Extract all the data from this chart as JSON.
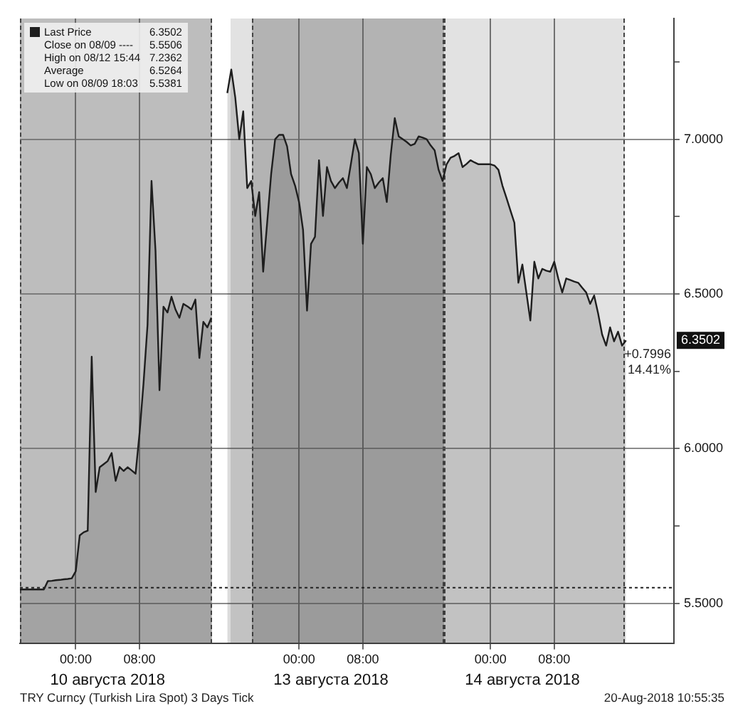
{
  "chart_data": {
    "type": "area",
    "categories": [
      null,
      null,
      null,
      null,
      null,
      null,
      null,
      null,
      null,
      null,
      null,
      null,
      null,
      null,
      "00:00",
      null,
      null,
      null,
      null,
      null,
      null,
      null,
      null,
      null,
      null,
      null,
      null,
      null,
      null,
      null,
      "08:00",
      null,
      null,
      null,
      null,
      null,
      null,
      null,
      null,
      null,
      null,
      null,
      null,
      null,
      null,
      null,
      null,
      null,
      null,
      null,
      null,
      null,
      null,
      null,
      null,
      null,
      null,
      null,
      null,
      null,
      null,
      null,
      null,
      null,
      null,
      null,
      null,
      null,
      null,
      null,
      "00:00",
      null,
      null,
      null,
      null,
      null,
      null,
      null,
      null,
      null,
      null,
      null,
      null,
      null,
      null,
      null,
      "08:00",
      null,
      null,
      null,
      null,
      null,
      null,
      null,
      null,
      null,
      null,
      null,
      null,
      null,
      null,
      null,
      null,
      null,
      null,
      null,
      null,
      null,
      null,
      null,
      null,
      null,
      null,
      null,
      null,
      null,
      null,
      null,
      "00:00",
      null,
      null,
      null,
      null,
      null,
      null,
      null,
      null,
      null,
      null,
      null,
      null,
      null,
      null,
      null,
      "08:00",
      null,
      null,
      null,
      null,
      null,
      null,
      null,
      null,
      null,
      null,
      null,
      null,
      null,
      null,
      null,
      null,
      null,
      null,
      null,
      null,
      null,
      null,
      null,
      null,
      null,
      null,
      null,
      null,
      null,
      null
    ],
    "ylim": [
      5.37,
      7.39
    ],
    "yticks": [
      {
        "value": 5.5,
        "label": "5.5000"
      },
      {
        "value": 5.75,
        "label": null
      },
      {
        "value": 6,
        "label": "6.0000"
      },
      {
        "value": 6.25,
        "label": null
      },
      {
        "value": 6.5,
        "label": "6.5000"
      },
      {
        "value": 6.75,
        "label": null
      },
      {
        "value": 7,
        "label": "7.0000"
      },
      {
        "value": 7.25,
        "label": null
      }
    ],
    "grid": true,
    "legend": "top left",
    "series": [
      {
        "name": "Last Price",
        "color": "#1e1e1e",
        "values": [
          5.545,
          5.545,
          5.545,
          5.545,
          5.545,
          5.545,
          5.545,
          5.572,
          5.573,
          5.575,
          5.576,
          5.578,
          5.579,
          5.581,
          5.604,
          5.72,
          5.73,
          5.735,
          6.297,
          5.86,
          5.94,
          5.95,
          5.96,
          5.986,
          5.896,
          5.941,
          5.928,
          5.94,
          5.93,
          5.919,
          6.05,
          6.212,
          6.4,
          6.865,
          6.64,
          6.189,
          6.459,
          6.44,
          6.491,
          6.45,
          6.423,
          6.468,
          6.46,
          6.45,
          6.482,
          6.293,
          6.41,
          6.392,
          6.423,
          null,
          null,
          null,
          7.149,
          7.225,
          7.135,
          7.0,
          7.09,
          6.842,
          6.865,
          6.752,
          6.829,
          6.572,
          6.73,
          6.887,
          7.0,
          7.014,
          7.014,
          6.977,
          6.887,
          6.85,
          6.797,
          6.707,
          6.446,
          6.662,
          6.685,
          6.932,
          6.752,
          6.91,
          6.865,
          6.842,
          6.86,
          6.874,
          6.842,
          6.92,
          7.0,
          6.955,
          6.662,
          6.91,
          6.887,
          6.842,
          6.86,
          6.874,
          6.797,
          6.95,
          7.068,
          7.009,
          7.0,
          6.991,
          6.98,
          6.985,
          7.009,
          7.005,
          7.0,
          6.98,
          6.964,
          6.901,
          6.865,
          6.919,
          6.94,
          6.946,
          6.955,
          6.91,
          6.92,
          6.932,
          6.925,
          6.919,
          6.919,
          6.919,
          6.919,
          6.915,
          6.901,
          6.85,
          6.811,
          6.77,
          6.73,
          6.536,
          6.595,
          6.505,
          6.414,
          6.604,
          6.55,
          6.581,
          6.575,
          6.572,
          6.604,
          6.55,
          6.505,
          6.55,
          6.545,
          6.54,
          6.536,
          6.52,
          6.505,
          6.468,
          6.495,
          6.437,
          6.369,
          6.333,
          6.392,
          6.347,
          6.378,
          6.333,
          6.35,
          null,
          null,
          null,
          null,
          null,
          null,
          null,
          null,
          null,
          null,
          null,
          null
        ]
      }
    ],
    "ref_lines": [
      {
        "axis": "y",
        "value": 5.5506,
        "line_style": "dotted",
        "color": "#222222"
      }
    ],
    "annotations": [
      "6.3502",
      "Close on 08/09 ---- 5.5506",
      "High on 08/12 15:44 7.2362",
      "Average 6.5264",
      "Low on 08/09 18:03 5.5381",
      {
        "text": "6.3502",
        "y": 6.3502
      },
      "+0.7996",
      "14.41%",
      "TRY Curncy (Turkish Lira Spot) 3 Days Tick",
      "20-Aug-2018 10:55:35",
      "10 августа 2018",
      "13 августа 2018",
      "14 августа 2018"
    ]
  }
}
